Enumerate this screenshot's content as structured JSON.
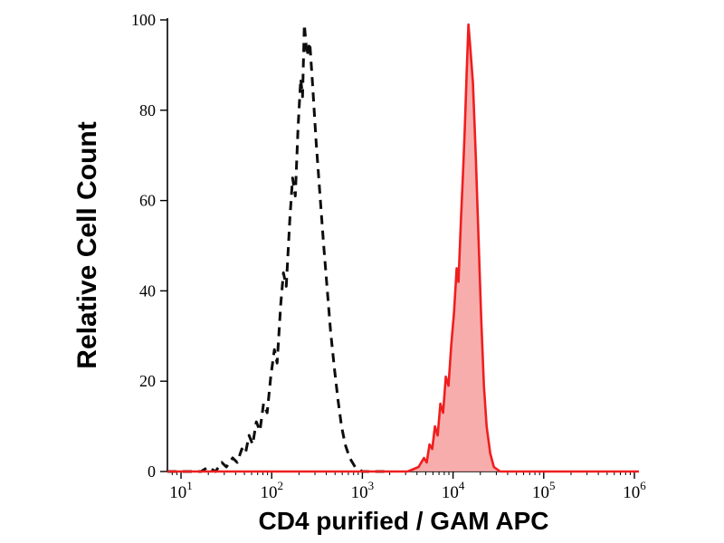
{
  "page": {
    "background": "#ffffff"
  },
  "chart_data": {
    "type": "line",
    "subtype": "flow-cytometry-histogram",
    "title": "",
    "xlabel": "CD4 purified / GAM APC",
    "ylabel": "Relative Cell Count",
    "x_scale": "log10",
    "x_log_range": [
      0.85,
      6.05
    ],
    "ylim": [
      0,
      100
    ],
    "y_ticks": [
      0,
      20,
      40,
      60,
      80,
      100
    ],
    "x_tick_exponents": [
      1,
      2,
      3,
      4,
      5,
      6
    ],
    "x_tick_base": "10",
    "grid": false,
    "legend": "none",
    "colors": {
      "axis": "#000000",
      "tick_text": "#000000",
      "dashed_series": "#0d0d0d",
      "red_series": "#f01e1e",
      "red_fill": "#f79f9f"
    },
    "series": [
      {
        "name": "unstained-control-dashed",
        "style": "dashed",
        "color": "#0d0d0d",
        "fill": "none",
        "width": 3,
        "peak_log10_x": 2.36,
        "peak_y": 99,
        "points": [
          [
            0.85,
            0
          ],
          [
            1.22,
            0
          ],
          [
            1.3,
            1
          ],
          [
            1.38,
            0
          ],
          [
            1.45,
            2
          ],
          [
            1.5,
            1
          ],
          [
            1.57,
            3
          ],
          [
            1.62,
            2
          ],
          [
            1.67,
            5
          ],
          [
            1.71,
            4
          ],
          [
            1.75,
            8
          ],
          [
            1.79,
            6
          ],
          [
            1.83,
            11
          ],
          [
            1.87,
            9
          ],
          [
            1.91,
            15
          ],
          [
            1.95,
            13
          ],
          [
            1.99,
            21
          ],
          [
            2.03,
            27
          ],
          [
            2.06,
            24
          ],
          [
            2.1,
            37
          ],
          [
            2.13,
            44
          ],
          [
            2.16,
            41
          ],
          [
            2.2,
            56
          ],
          [
            2.23,
            65
          ],
          [
            2.26,
            61
          ],
          [
            2.29,
            76
          ],
          [
            2.32,
            87
          ],
          [
            2.34,
            83
          ],
          [
            2.36,
            99
          ],
          [
            2.39,
            92
          ],
          [
            2.42,
            95
          ],
          [
            2.45,
            86
          ],
          [
            2.49,
            73
          ],
          [
            2.53,
            62
          ],
          [
            2.57,
            51
          ],
          [
            2.61,
            41
          ],
          [
            2.65,
            31
          ],
          [
            2.69,
            23
          ],
          [
            2.73,
            16
          ],
          [
            2.77,
            10
          ],
          [
            2.81,
            6
          ],
          [
            2.86,
            3
          ],
          [
            2.92,
            1
          ],
          [
            3.0,
            0
          ],
          [
            3.3,
            0
          ]
        ]
      },
      {
        "name": "cd4-stained-red-filled",
        "style": "solid",
        "color": "#f01e1e",
        "fill": "#f79f9f",
        "fill_opacity": 0.85,
        "width": 2.6,
        "peak_log10_x": 4.17,
        "peak_y": 99,
        "points": [
          [
            0.85,
            0
          ],
          [
            3.5,
            0
          ],
          [
            3.62,
            1
          ],
          [
            3.68,
            3
          ],
          [
            3.71,
            2
          ],
          [
            3.74,
            6
          ],
          [
            3.77,
            5
          ],
          [
            3.8,
            10
          ],
          [
            3.83,
            8
          ],
          [
            3.86,
            15
          ],
          [
            3.89,
            13
          ],
          [
            3.92,
            21
          ],
          [
            3.95,
            19
          ],
          [
            3.98,
            28
          ],
          [
            4.01,
            35
          ],
          [
            4.04,
            45
          ],
          [
            4.06,
            42
          ],
          [
            4.09,
            57
          ],
          [
            4.11,
            66
          ],
          [
            4.13,
            76
          ],
          [
            4.15,
            88
          ],
          [
            4.17,
            99
          ],
          [
            4.19,
            94
          ],
          [
            4.22,
            86
          ],
          [
            4.25,
            70
          ],
          [
            4.28,
            52
          ],
          [
            4.31,
            34
          ],
          [
            4.34,
            19
          ],
          [
            4.37,
            10
          ],
          [
            4.41,
            4
          ],
          [
            4.45,
            1
          ],
          [
            4.52,
            0
          ],
          [
            6.05,
            0
          ]
        ]
      }
    ]
  }
}
